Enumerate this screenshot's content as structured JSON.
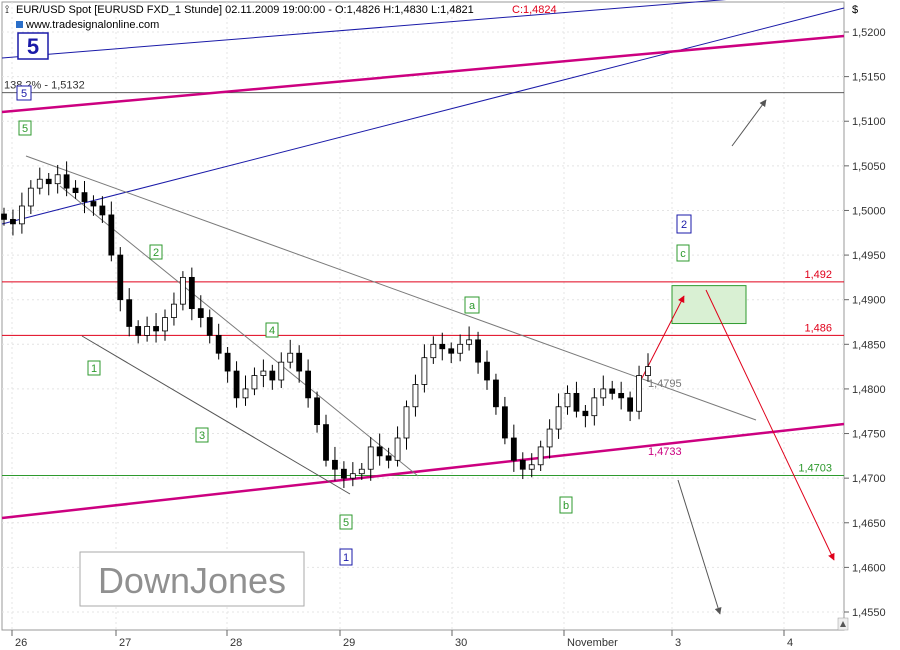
{
  "header": {
    "instrument": "EUR/USD Spot [EURUSD FXD_1 Stunde] 02.11.2009 19:00:00 - O:1,4826 H:1,4830 L:1,4821",
    "close": "C:1,4824",
    "source": "www.tradesignalonline.com",
    "currency_symbol": "$",
    "wave_big": "5"
  },
  "watermark": "DownJones",
  "colors": {
    "up_candle": "#ffffff",
    "down_candle": "#000000",
    "resistance": "#e0001a",
    "support": "#2e9a2e",
    "trendline": "#cc0080",
    "channel": "#1a1aa8",
    "arrow_red": "#e0001a",
    "arrow_gray": "#555555"
  },
  "chart_data": {
    "type": "candlestick",
    "x_labels": [
      "26",
      "27",
      "28",
      "29",
      "30",
      "November",
      "3",
      "4"
    ],
    "y_ticks": [
      "1,5200",
      "1,5150",
      "1,5100",
      "1,5050",
      "1,5000",
      "1,4950",
      "1,4900",
      "1,4850",
      "1,4800",
      "1,4750",
      "1,4700",
      "1,4650",
      "1,4600",
      "1,4550"
    ],
    "ylim": [
      1.453,
      1.5235
    ],
    "close_path": [
      1.499,
      1.4985,
      1.5005,
      1.5025,
      1.5035,
      1.503,
      1.504,
      1.5025,
      1.502,
      1.501,
      1.5005,
      1.4995,
      1.495,
      1.49,
      1.487,
      1.486,
      1.487,
      1.4865,
      1.488,
      1.4895,
      1.4925,
      1.489,
      1.488,
      1.486,
      1.484,
      1.482,
      1.479,
      1.48,
      1.4815,
      1.482,
      1.481,
      1.483,
      1.484,
      1.482,
      1.479,
      1.476,
      1.472,
      1.471,
      1.47,
      1.4705,
      1.471,
      1.4735,
      1.4725,
      1.472,
      1.4745,
      1.478,
      1.4805,
      1.4835,
      1.485,
      1.4845,
      1.484,
      1.485,
      1.4855,
      1.483,
      1.481,
      1.478,
      1.4745,
      1.472,
      1.471,
      1.4715,
      1.4735,
      1.4755,
      1.478,
      1.4795,
      1.4775,
      1.477,
      1.479,
      1.48,
      1.4795,
      1.479,
      1.4775,
      1.4815,
      1.4825
    ],
    "levels": [
      {
        "label": "1,492",
        "value": 1.492,
        "kind": "resistance"
      },
      {
        "label": "1,486",
        "value": 1.486,
        "kind": "resistance"
      },
      {
        "label": "1,4703",
        "value": 1.4703,
        "kind": "support"
      },
      {
        "label": "138,2% - 1,5132",
        "value": 1.5132,
        "kind": "fib"
      }
    ],
    "annotations": [
      {
        "label": "1,4795",
        "value": 1.4795
      },
      {
        "label": "1,4733",
        "value": 1.4733
      }
    ],
    "wave_labels": [
      "5",
      "5",
      "2",
      "4",
      "1",
      "3",
      "5",
      "1",
      "a",
      "b",
      "c",
      "2"
    ],
    "target_box": [
      1.488,
      1.4918
    ]
  }
}
